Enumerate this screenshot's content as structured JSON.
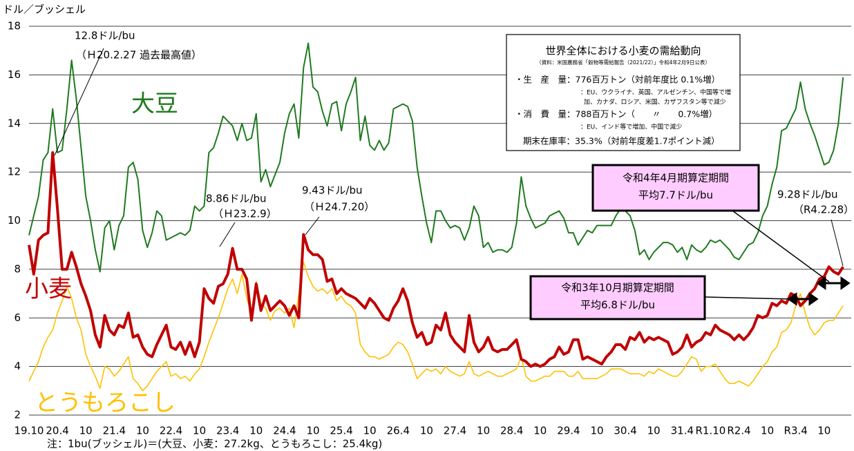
{
  "chart_data": {
    "type": "line",
    "y_label": "ドル／ブッシェル",
    "ylim": [
      2,
      18
    ],
    "yticks": [
      2,
      4,
      6,
      8,
      10,
      12,
      14,
      16,
      18
    ],
    "grid": true,
    "categories": [
      "19.10",
      null,
      null,
      null,
      null,
      null,
      "20.4",
      null,
      null,
      null,
      null,
      null,
      "10",
      null,
      null,
      null,
      null,
      null,
      "21.4",
      null,
      null,
      null,
      null,
      null,
      "10",
      null,
      null,
      null,
      null,
      null,
      "22.4",
      null,
      null,
      null,
      null,
      null,
      "10",
      null,
      null,
      null,
      null,
      null,
      "23.4",
      null,
      null,
      null,
      null,
      null,
      "10",
      null,
      null,
      null,
      null,
      null,
      "24.4",
      null,
      null,
      null,
      null,
      null,
      "10",
      null,
      null,
      null,
      null,
      null,
      "25.4",
      null,
      null,
      null,
      null,
      null,
      "10",
      null,
      null,
      null,
      null,
      null,
      "26.4",
      null,
      null,
      null,
      null,
      null,
      "10",
      null,
      null,
      null,
      null,
      null,
      "27.4",
      null,
      null,
      null,
      null,
      null,
      "10",
      null,
      null,
      null,
      null,
      null,
      "28.4",
      null,
      null,
      null,
      null,
      null,
      "10",
      null,
      null,
      null,
      null,
      null,
      "29.4",
      null,
      null,
      null,
      null,
      null,
      "10",
      null,
      null,
      null,
      null,
      null,
      "30.4",
      null,
      null,
      null,
      null,
      null,
      "10",
      null,
      null,
      null,
      null,
      null,
      "31.4",
      null,
      null,
      null,
      null,
      null,
      "R1.10",
      null,
      null,
      null,
      null,
      null,
      "R2.4",
      null,
      null,
      null,
      null,
      null,
      "10",
      null,
      null,
      null,
      null,
      null,
      "R3.4",
      null,
      null,
      null,
      null,
      null,
      "10",
      null,
      null,
      null,
      null
    ],
    "series": [
      {
        "name": "大豆",
        "color": "#1f7a1f",
        "width": 2,
        "values": [
          9.4,
          10.2,
          11.0,
          12.5,
          12.8,
          14.6,
          12.8,
          12.9,
          14.6,
          16.6,
          15.0,
          13.0,
          11.0,
          10.0,
          8.8,
          7.9,
          9.7,
          10.0,
          8.8,
          9.8,
          10.2,
          12.2,
          12.4,
          11.7,
          9.6,
          8.9,
          9.5,
          10.4,
          10.2,
          9.2,
          9.3,
          9.4,
          9.5,
          9.4,
          9.6,
          10.6,
          10.4,
          10.6,
          12.8,
          13.0,
          13.6,
          14.3,
          14.1,
          13.9,
          13.3,
          14.0,
          13.3,
          13.4,
          14.4,
          11.6,
          12.1,
          11.4,
          11.9,
          12.4,
          13.6,
          14.4,
          14.8,
          13.4,
          16.3,
          17.3,
          15.5,
          15.3,
          14.5,
          13.9,
          14.8,
          14.9,
          13.7,
          14.8,
          15.3,
          15.9,
          13.3,
          14.3,
          13.1,
          12.9,
          13.3,
          12.9,
          13.2,
          14.6,
          14.7,
          14.8,
          14.7,
          14.1,
          12.2,
          11.0,
          9.9,
          9.1,
          10.4,
          10.4,
          10.0,
          9.7,
          9.8,
          9.7,
          9.2,
          9.7,
          10.6,
          10.2,
          8.9,
          9.1,
          8.7,
          8.8,
          8.8,
          8.7,
          8.9,
          9.9,
          11.8,
          10.6,
          10.1,
          9.7,
          9.8,
          9.9,
          10.2,
          10.3,
          10.4,
          10.1,
          9.5,
          9.5,
          9.0,
          9.3,
          9.6,
          9.5,
          9.8,
          9.8,
          9.8,
          9.8,
          10.2,
          10.5,
          10.4,
          10.2,
          9.6,
          8.6,
          8.8,
          8.4,
          8.7,
          8.9,
          9.1,
          9.1,
          9.0,
          8.7,
          8.9,
          8.4,
          9.0,
          8.8,
          8.7,
          8.9,
          9.2,
          9.1,
          9.2,
          9.0,
          8.8,
          8.5,
          8.4,
          8.7,
          9.0,
          9.1,
          9.5,
          10.2,
          10.6,
          11.5,
          12.2,
          13.7,
          13.8,
          14.2,
          14.6,
          15.7,
          14.6,
          14.0,
          13.5,
          12.9,
          12.3,
          12.4,
          12.9,
          14.0,
          15.9
        ]
      },
      {
        "name": "小麦",
        "color": "#c00000",
        "width": 4,
        "values": [
          9.0,
          7.8,
          9.2,
          9.4,
          9.5,
          12.8,
          10.5,
          8.0,
          8.0,
          8.7,
          8.1,
          7.4,
          6.9,
          6.3,
          5.3,
          4.8,
          6.1,
          5.5,
          5.3,
          5.7,
          5.6,
          6.2,
          5.2,
          5.3,
          4.8,
          4.5,
          4.4,
          4.9,
          5.3,
          5.7,
          4.8,
          4.7,
          5.0,
          4.5,
          5.0,
          4.4,
          5.0,
          7.2,
          6.8,
          6.6,
          7.3,
          7.4,
          7.8,
          8.86,
          8.0,
          8.0,
          7.6,
          5.9,
          7.4,
          6.3,
          6.9,
          6.3,
          6.5,
          6.7,
          6.5,
          6.1,
          6.5,
          6.0,
          9.43,
          8.8,
          8.6,
          8.6,
          8.4,
          7.5,
          7.6,
          7.0,
          7.2,
          7.0,
          6.9,
          6.8,
          6.6,
          6.4,
          6.8,
          6.6,
          6.3,
          6.0,
          5.9,
          6.4,
          6.7,
          7.2,
          6.7,
          5.8,
          5.2,
          5.4,
          4.9,
          5.0,
          5.7,
          5.5,
          6.2,
          5.3,
          5.0,
          4.8,
          4.6,
          6.1,
          5.0,
          4.6,
          4.8,
          5.2,
          4.7,
          4.6,
          4.7,
          4.7,
          4.9,
          5.1,
          4.3,
          4.2,
          4.0,
          4.1,
          4.0,
          4.1,
          4.3,
          4.4,
          4.8,
          4.5,
          4.6,
          5.1,
          5.1,
          4.3,
          4.4,
          4.3,
          4.2,
          4.1,
          4.4,
          4.6,
          4.9,
          4.9,
          4.7,
          5.2,
          5.1,
          5.4,
          5.0,
          5.2,
          5.1,
          5.2,
          5.1,
          5.0,
          4.5,
          4.6,
          4.8,
          5.3,
          4.8,
          5.0,
          5.1,
          5.4,
          5.3,
          5.7,
          5.5,
          5.4,
          5.3,
          5.1,
          5.3,
          5.1,
          5.3,
          5.6,
          6.1,
          6.0,
          6.1,
          6.6,
          6.5,
          6.7,
          6.6,
          7.0,
          6.9,
          6.5,
          6.7,
          7.0,
          7.2,
          7.6,
          7.7,
          8.1,
          7.9,
          7.8,
          8.1
        ]
      },
      {
        "name": "とうもろこし",
        "color": "#ffc000",
        "width": 1.6,
        "values": [
          3.4,
          3.8,
          4.2,
          4.8,
          5.2,
          5.5,
          6.2,
          6.7,
          7.3,
          6.8,
          6.0,
          5.5,
          4.5,
          4.0,
          3.6,
          3.1,
          4.0,
          3.9,
          3.6,
          3.8,
          4.1,
          4.4,
          3.5,
          3.3,
          3.0,
          3.2,
          3.5,
          3.8,
          4.0,
          4.2,
          3.6,
          3.7,
          3.5,
          3.6,
          3.4,
          3.7,
          3.9,
          4.4,
          5.0,
          5.5,
          6.0,
          6.6,
          7.2,
          7.6,
          7.0,
          7.8,
          6.8,
          6.2,
          7.5,
          6.6,
          6.4,
          5.9,
          6.3,
          6.4,
          6.2,
          6.4,
          5.6,
          7.0,
          8.3,
          7.7,
          7.3,
          7.1,
          7.2,
          7.0,
          7.2,
          6.7,
          6.9,
          6.6,
          6.5,
          6.2,
          4.9,
          4.6,
          4.4,
          4.4,
          4.3,
          4.4,
          4.5,
          4.8,
          5.0,
          4.9,
          4.6,
          4.1,
          3.5,
          3.7,
          3.9,
          3.8,
          3.9,
          3.7,
          4.0,
          3.8,
          3.7,
          3.6,
          3.7,
          4.2,
          3.7,
          3.6,
          3.7,
          3.8,
          3.7,
          3.6,
          3.6,
          3.7,
          3.8,
          3.9,
          4.4,
          3.6,
          3.4,
          3.4,
          3.5,
          3.6,
          3.6,
          3.8,
          3.8,
          3.8,
          3.6,
          3.6,
          3.8,
          3.5,
          3.5,
          3.5,
          3.5,
          3.6,
          3.7,
          3.9,
          3.9,
          3.9,
          3.8,
          3.7,
          3.7,
          3.7,
          3.6,
          3.8,
          3.7,
          3.9,
          3.8,
          3.7,
          3.6,
          3.6,
          3.8,
          4.1,
          4.4,
          4.3,
          3.8,
          4.0,
          4.0,
          4.1,
          3.8,
          3.5,
          3.3,
          3.3,
          3.4,
          3.3,
          3.2,
          3.4,
          3.7,
          4.0,
          4.2,
          4.6,
          4.8,
          5.4,
          5.5,
          5.8,
          6.5,
          7.0,
          6.2,
          5.6,
          5.3,
          5.5,
          5.8,
          5.9,
          5.9,
          6.2,
          6.5
        ]
      }
    ],
    "annotations": [
      "12.8ドル/bu",
      "（Ｈ20.2.27 過去最高値）",
      "8.86ドル/bu",
      "（Ｈ23.2.9）",
      "9.43ドル/bu",
      "（Ｈ24.7.20）",
      "9.28ドル/bu",
      "（R4.2.28）"
    ],
    "period_boxes": [
      {
        "title": "令和4年4月期算定期間",
        "note": "平均7.7ドル/bu"
      },
      {
        "title": "令和3年10月期算定期間",
        "note": "平均6.8ドル/bu"
      }
    ],
    "info_box": {
      "title": "世界全体における小麦の需給動向",
      "source": "（資料：米国農務省「穀物等需給報告（2021/22）」令和4年2月9日公表）",
      "lines": [
        "・生　産　量：776百万トン（対前年度比 0.1%増）",
        "：EU、ウクライナ、英国、アルゼンチン、中国等で増",
        "加、カナダ、ロシア、米国、カザフスタン等で減少",
        "・消　費　量：788百万トン（　　〃　　0.7%増）",
        "：EU、インド等で増加、中国で減少",
        "期末在庫率：35.3%（対前年度差1.7ポイント減）"
      ]
    },
    "footnote": "注：1bu(ブッシェル)＝(大豆、小麦：27.2kg、とうもろこし：25.4kg)"
  }
}
